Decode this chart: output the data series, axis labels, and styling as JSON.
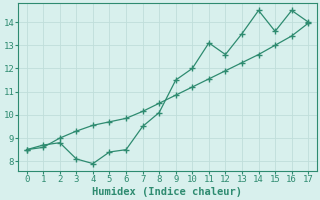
{
  "line1_x": [
    0,
    1,
    2,
    3,
    4,
    5,
    6,
    7,
    8,
    9,
    10,
    11,
    12,
    13,
    14,
    15,
    16,
    17
  ],
  "line1_y": [
    8.5,
    8.7,
    8.8,
    8.1,
    7.9,
    8.4,
    8.5,
    9.5,
    10.1,
    11.5,
    12.0,
    13.1,
    12.6,
    13.5,
    14.5,
    13.6,
    14.5,
    14.0
  ],
  "line2_x": [
    0,
    1,
    2,
    3,
    4,
    5,
    6,
    7,
    8,
    9,
    10,
    11,
    12,
    13,
    14,
    15,
    16,
    17
  ],
  "line2_y": [
    8.5,
    8.6,
    9.0,
    9.3,
    9.55,
    9.7,
    9.85,
    10.15,
    10.5,
    10.85,
    11.2,
    11.55,
    11.9,
    12.25,
    12.6,
    13.0,
    13.4,
    13.95
  ],
  "line_color": "#2e8b70",
  "bg_color": "#d8f0ed",
  "grid_color": "#c0deda",
  "xlabel": "Humidex (Indice chaleur)",
  "ylim": [
    7.6,
    14.8
  ],
  "xlim": [
    -0.5,
    17.5
  ],
  "yticks": [
    8,
    9,
    10,
    11,
    12,
    13,
    14
  ],
  "xticks": [
    0,
    1,
    2,
    3,
    4,
    5,
    6,
    7,
    8,
    9,
    10,
    11,
    12,
    13,
    14,
    15,
    16,
    17
  ],
  "xlabel_fontsize": 7.5,
  "tick_fontsize": 6.5
}
